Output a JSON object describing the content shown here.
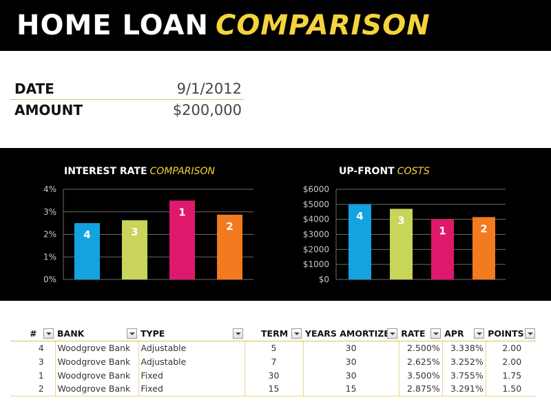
{
  "header": {
    "title_main": "HOME LOAN",
    "title_accent": "COMPARISON"
  },
  "summary": {
    "date_label": "DATE",
    "date_value": "9/1/2012",
    "amount_label": "AMOUNT",
    "amount_value": "$200,000"
  },
  "colors": {
    "accent": "#f5d33c",
    "blue": "#13a3e0",
    "lime": "#c8d45a",
    "pink": "#e0186c",
    "orange": "#f27a1f"
  },
  "chart_data": [
    {
      "type": "bar",
      "title_main": "INTEREST RATE",
      "title_accent": "COMPARISON",
      "ylim": [
        0,
        4
      ],
      "ytick_labels": [
        "0%",
        "1%",
        "2%",
        "3%",
        "4%"
      ],
      "ytick_values": [
        0,
        1,
        2,
        3,
        4
      ],
      "bars": [
        {
          "label": "4",
          "value": 2.5,
          "color": "#13a3e0"
        },
        {
          "label": "3",
          "value": 2.625,
          "color": "#c8d45a"
        },
        {
          "label": "1",
          "value": 3.5,
          "color": "#e0186c"
        },
        {
          "label": "2",
          "value": 2.875,
          "color": "#f27a1f"
        }
      ],
      "grid": true,
      "legend": "none"
    },
    {
      "type": "bar",
      "title_main": "UP-FRONT",
      "title_accent": "COSTS",
      "ylim": [
        0,
        6000
      ],
      "ytick_labels": [
        "$0",
        "$1000",
        "$2000",
        "$3000",
        "$4000",
        "$5000",
        "$6000"
      ],
      "ytick_values": [
        0,
        1000,
        2000,
        3000,
        4000,
        5000,
        6000
      ],
      "bars": [
        {
          "label": "4",
          "value": 5000,
          "color": "#13a3e0"
        },
        {
          "label": "3",
          "value": 4700,
          "color": "#c8d45a"
        },
        {
          "label": "1",
          "value": 4000,
          "color": "#e0186c"
        },
        {
          "label": "2",
          "value": 4150,
          "color": "#f27a1f"
        }
      ],
      "grid": true,
      "legend": "none"
    }
  ],
  "table": {
    "headers": [
      "#",
      "BANK",
      "TYPE",
      "TERM",
      "YEARS AMORTIZED",
      "RATE",
      "APR",
      "POINTS"
    ],
    "rows": [
      [
        "4",
        "Woodgrove Bank",
        "Adjustable",
        "5",
        "30",
        "2.500%",
        "3.338%",
        "2.00"
      ],
      [
        "3",
        "Woodgrove Bank",
        "Adjustable",
        "7",
        "30",
        "2.625%",
        "3.252%",
        "2.00"
      ],
      [
        "1",
        "Woodgrove Bank",
        "Fixed",
        "30",
        "30",
        "3.500%",
        "3.755%",
        "1.75"
      ],
      [
        "2",
        "Woodgrove Bank",
        "Fixed",
        "15",
        "15",
        "2.875%",
        "3.291%",
        "1.50"
      ]
    ]
  }
}
